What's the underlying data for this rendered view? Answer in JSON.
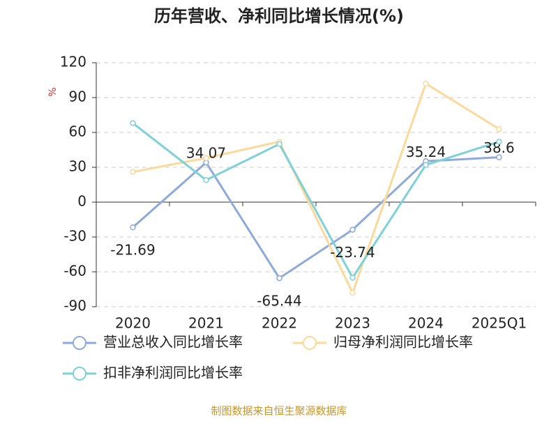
{
  "chart_data": {
    "type": "line",
    "title": "历年营收、净利同比增长情况(%)",
    "y_label": "%",
    "categories": [
      "2020",
      "2021",
      "2022",
      "2023",
      "2024",
      "2025Q1"
    ],
    "series": [
      {
        "name": "营业总收入同比增长率",
        "color": "#8eaad8",
        "values": [
          -21.69,
          34.07,
          -65.44,
          -23.74,
          35.24,
          38.6
        ],
        "show_labels": true
      },
      {
        "name": "归母净利润同比增长率",
        "color": "#fcd99a",
        "values": [
          26,
          38,
          52,
          -78,
          102,
          63
        ]
      },
      {
        "name": "扣非净利润同比增长率",
        "color": "#7fd1d6",
        "values": [
          68,
          19,
          50,
          -65,
          32,
          52
        ]
      }
    ],
    "ylim": [
      -90,
      120
    ],
    "yticks": [
      -90,
      -60,
      -30,
      0,
      30,
      60,
      90,
      120
    ],
    "grid": true,
    "source": "制图数据来自恒生聚源数据库"
  }
}
